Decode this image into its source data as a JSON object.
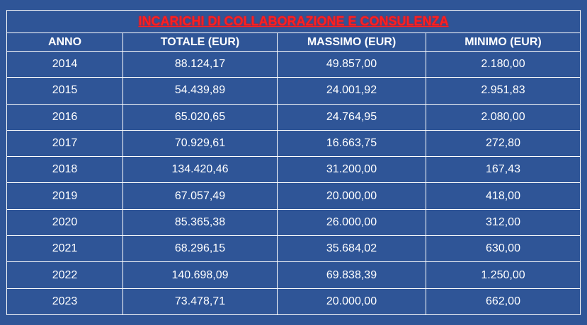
{
  "title": "INCARICHI DI COLLABORAZIONE E CONSULENZA",
  "columns": [
    "ANNO",
    "TOTALE (EUR)",
    "MASSIMO (EUR)",
    "MINIMO (EUR)"
  ],
  "rows": [
    [
      "2014",
      "88.124,17",
      "49.857,00",
      "2.180,00"
    ],
    [
      "2015",
      "54.439,89",
      "24.001,92",
      "2.951,83"
    ],
    [
      "2016",
      "65.020,65",
      "24.764,95",
      "2.080,00"
    ],
    [
      "2017",
      "70.929,61",
      "16.663,75",
      "272,80"
    ],
    [
      "2018",
      "134.420,46",
      "31.200,00",
      "167,43"
    ],
    [
      "2019",
      "67.057,49",
      "20.000,00",
      "418,00"
    ],
    [
      "2020",
      "85.365,38",
      "26.000,00",
      "312,00"
    ],
    [
      "2021",
      "68.296,15",
      "35.684,02",
      "630,00"
    ],
    [
      "2022",
      "140.698,09",
      "69.838,39",
      "1.250,00"
    ],
    [
      "2023",
      "73.478,71",
      "20.000,00",
      "662,00"
    ]
  ],
  "colors": {
    "background": "#2f5597",
    "text": "#ffffff",
    "title": "#ff2020",
    "border": "#ffffff"
  }
}
